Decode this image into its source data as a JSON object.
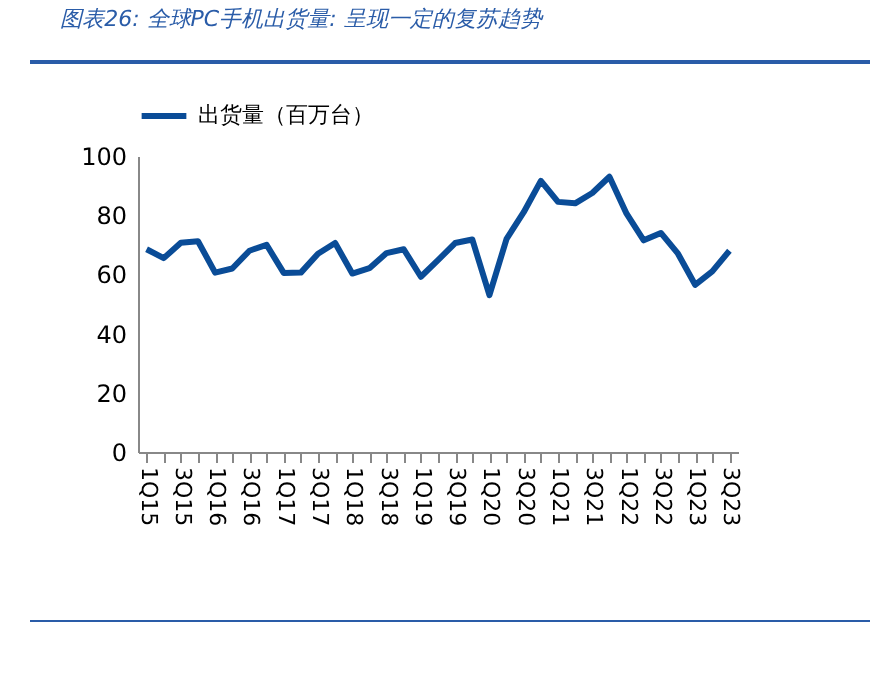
{
  "chart_data": {
    "type": "line",
    "title": "图表26: 全球PC手机出货量: 呈现一定的复苏趋势",
    "categories": [
      "1Q15",
      null,
      "3Q15",
      null,
      "1Q16",
      null,
      "3Q16",
      null,
      "1Q17",
      null,
      "3Q17",
      null,
      "1Q18",
      null,
      "3Q18",
      null,
      "1Q19",
      null,
      "3Q19",
      null,
      "1Q20",
      null,
      "3Q20",
      null,
      "1Q21",
      null,
      "3Q21",
      null,
      "1Q22",
      null,
      "3Q22",
      null,
      "1Q23",
      null,
      "3Q23"
    ],
    "series": [
      {
        "name": "出货量（百万台）",
        "color": "#0a4c97",
        "values": [
          68.5,
          65.5,
          70.7,
          71.2,
          60.6,
          62,
          68,
          70,
          60.5,
          60.6,
          67,
          70.6,
          60.3,
          62.1,
          67.2,
          68.5,
          59.2,
          64.8,
          70.6,
          71.8,
          53,
          72,
          81,
          91.6,
          84.5,
          84,
          87.5,
          93,
          80.5,
          71.5,
          74,
          67,
          56.5,
          61,
          68
        ]
      }
    ],
    "ylim": [
      0,
      100
    ],
    "yticks": [
      0,
      20,
      40,
      60,
      80,
      100
    ],
    "grid": false,
    "legend": "top",
    "marker": "none",
    "line_style": "solid"
  }
}
